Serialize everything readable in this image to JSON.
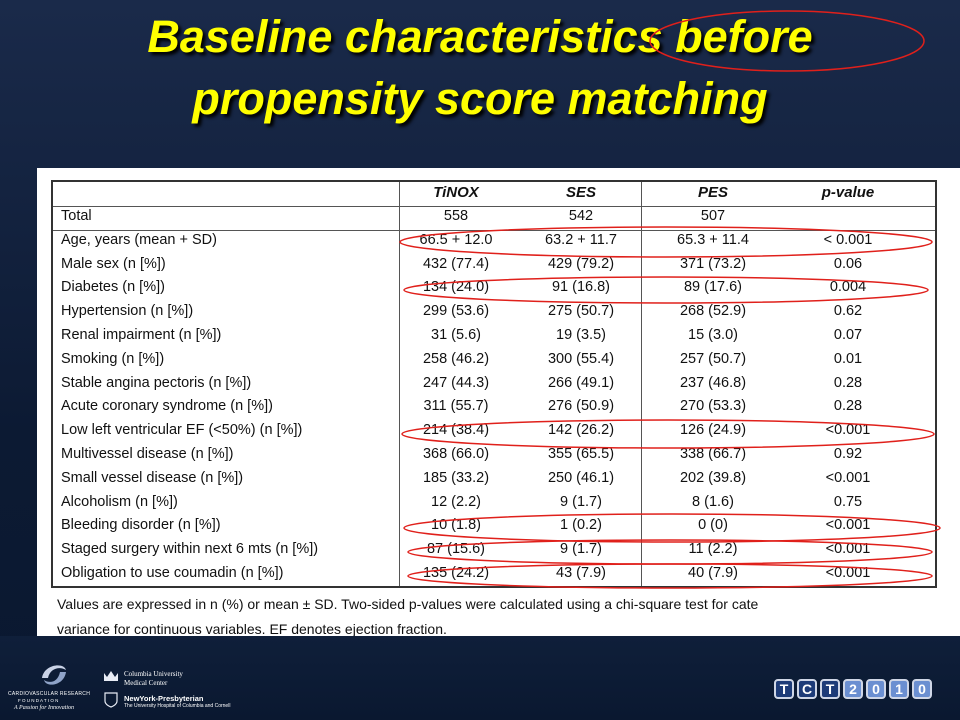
{
  "slide": {
    "title_line1": "Baseline characteristics before",
    "title_line2": "propensity score matching"
  },
  "table": {
    "headers": [
      "",
      "TiNOX",
      "SES",
      "PES",
      "p-value"
    ],
    "rows": [
      [
        "Total",
        "558",
        "542",
        "507",
        ""
      ],
      [
        "Age, years (mean + SD)",
        "66.5 + 12.0",
        "63.2 + 11.7",
        "65.3 + 11.4",
        "< 0.001"
      ],
      [
        "Male sex (n [%])",
        "432 (77.4)",
        "429 (79.2)",
        "371 (73.2)",
        "0.06"
      ],
      [
        "Diabetes (n [%])",
        "134 (24.0)",
        "91 (16.8)",
        "89 (17.6)",
        "0.004"
      ],
      [
        "Hypertension (n [%])",
        "299 (53.6)",
        "275 (50.7)",
        "268 (52.9)",
        "0.62"
      ],
      [
        "Renal impairment (n [%])",
        "31 (5.6)",
        "19 (3.5)",
        "15 (3.0)",
        "0.07"
      ],
      [
        "Smoking (n [%])",
        "258 (46.2)",
        "300 (55.4)",
        "257 (50.7)",
        "0.01"
      ],
      [
        "Stable angina pectoris (n [%])",
        "247 (44.3)",
        "266 (49.1)",
        "237 (46.8)",
        "0.28"
      ],
      [
        "Acute coronary syndrome (n [%])",
        "311 (55.7)",
        "276 (50.9)",
        "270 (53.3)",
        "0.28"
      ],
      [
        "Low left ventricular EF (<50%) (n [%])",
        "214 (38.4)",
        "142 (26.2)",
        "126 (24.9)",
        "<0.001"
      ],
      [
        "Multivessel disease (n [%])",
        "368 (66.0)",
        "355 (65.5)",
        "338 (66.7)",
        "0.92"
      ],
      [
        "Small vessel disease (n [%])",
        "185 (33.2)",
        "250 (46.1)",
        "202 (39.8)",
        "<0.001"
      ],
      [
        "Alcoholism (n [%])",
        "12 (2.2)",
        "9 (1.7)",
        "8 (1.6)",
        "0.75"
      ],
      [
        "Bleeding disorder (n [%])",
        "10 (1.8)",
        "1 (0.2)",
        "0 (0)",
        "<0.001"
      ],
      [
        "Staged surgery within next 6 mts (n [%])",
        "87 (15.6)",
        "9 (1.7)",
        "11 (2.2)",
        "<0.001"
      ],
      [
        "Obligation to use coumadin (n [%])",
        "135 (24.2)",
        "43 (7.9)",
        "40 (7.9)",
        "<0.001"
      ]
    ],
    "footnote_line1": "Values are expressed in n (%) or mean ± SD. Two-sided p-values were calculated using a chi-square test for cate",
    "footnote_line2": "variance for continuous variables. EF denotes ejection fraction.",
    "highlight_color": "#e0201b"
  },
  "logos": {
    "crf_line1": "CARDIOVASCULAR RESEARCH",
    "crf_line2": "F O U N D A T I O N",
    "crf_tagline": "A Passion for Innovation",
    "columbia_line1": "Columbia University",
    "columbia_line2": "Medical Center",
    "nyp_line1": "NewYork-Presbyterian",
    "nyp_line2": "The University Hospital of Columbia and Cornell",
    "tct_letters": [
      "T",
      "C",
      "T",
      "2",
      "0",
      "1",
      "0"
    ]
  }
}
